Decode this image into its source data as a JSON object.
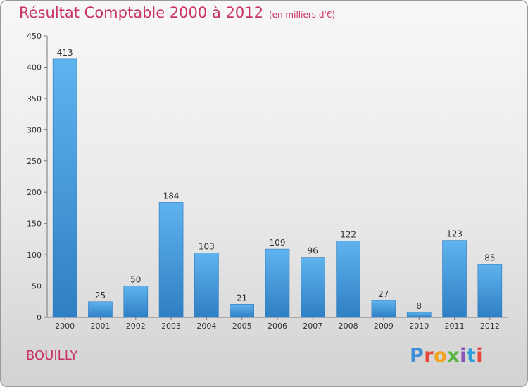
{
  "chart_data": {
    "type": "bar",
    "title": "Résultat Comptable 2000 à 2012",
    "subtitle": "(en milliers d'€)",
    "categories": [
      "2000",
      "2001",
      "2002",
      "2003",
      "2004",
      "2005",
      "2006",
      "2007",
      "2008",
      "2009",
      "2010",
      "2011",
      "2012"
    ],
    "values": [
      413,
      25,
      50,
      184,
      103,
      21,
      109,
      96,
      122,
      27,
      8,
      123,
      85
    ],
    "xlabel": "",
    "ylabel": "",
    "ylim": [
      0,
      450
    ],
    "yticks": [
      0,
      50,
      100,
      150,
      200,
      250,
      300,
      350,
      400,
      450
    ],
    "grid": false,
    "bar_color": "#3f9ae0"
  },
  "commune": "BOUILLY",
  "logo": {
    "text": "Proxiti",
    "parts": [
      "P",
      "r",
      "o",
      "x",
      "i",
      "t",
      "i"
    ]
  }
}
